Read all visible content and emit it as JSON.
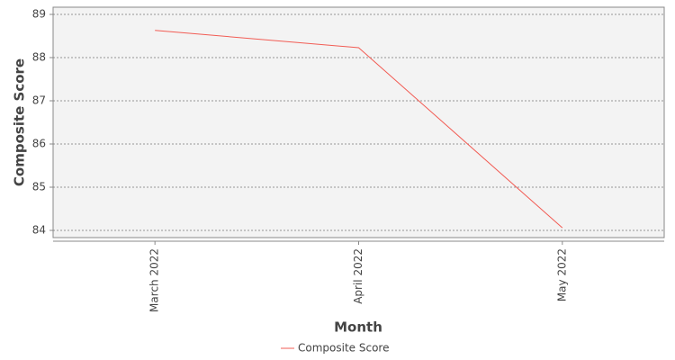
{
  "chart_data": {
    "type": "line",
    "x_label": "Month",
    "y_label": "Composite Score",
    "categories": [
      "March 2022",
      "April 2022",
      "May 2022"
    ],
    "series": [
      {
        "name": "Composite Score",
        "color": "#f25c54",
        "values": [
          88.63,
          88.23,
          84.06
        ]
      }
    ],
    "ylim": [
      83.833,
      89.167
    ],
    "yticks": [
      84,
      85,
      86,
      87,
      88,
      89
    ],
    "grid": true,
    "legend": "bottom"
  }
}
